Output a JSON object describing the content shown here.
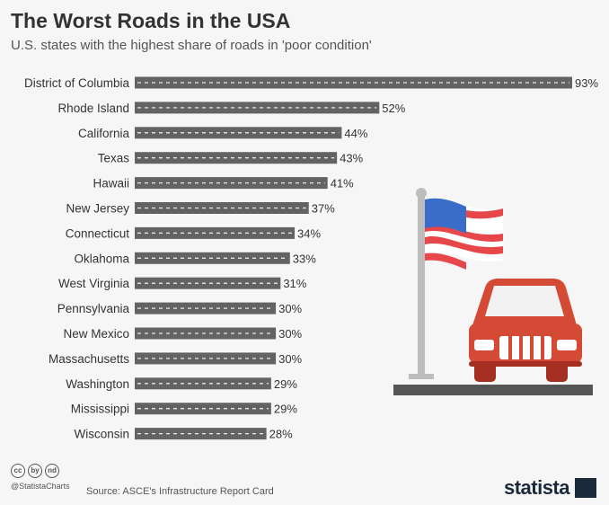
{
  "header": {
    "title": "The Worst Roads in the USA",
    "subtitle": "U.S. states with the highest share of roads in 'poor condition'"
  },
  "chart_data": {
    "type": "bar",
    "orientation": "horizontal",
    "categories": [
      "District of Columbia",
      "Rhode Island",
      "California",
      "Texas",
      "Hawaii",
      "New Jersey",
      "Connecticut",
      "Oklahoma",
      "West Virginia",
      "Pennsylvania",
      "New Mexico",
      "Massachusetts",
      "Washington",
      "Mississippi",
      "Wisconsin"
    ],
    "values": [
      93,
      52,
      44,
      43,
      41,
      37,
      34,
      33,
      31,
      30,
      30,
      30,
      29,
      29,
      28
    ],
    "value_labels": [
      "93%",
      "52%",
      "44%",
      "43%",
      "41%",
      "37%",
      "34%",
      "33%",
      "31%",
      "30%",
      "30%",
      "30%",
      "29%",
      "29%",
      "28%"
    ],
    "unit": "%",
    "xlim": [
      0,
      93
    ],
    "grid": false,
    "colors": {
      "bar": "#636363",
      "dash": "#e8e8e8"
    }
  },
  "footer": {
    "license_icons": [
      "cc",
      "by",
      "nd"
    ],
    "handle": "@StatistaCharts",
    "source": "Source: ASCE's Infrastructure Report Card",
    "brand": "statista"
  }
}
